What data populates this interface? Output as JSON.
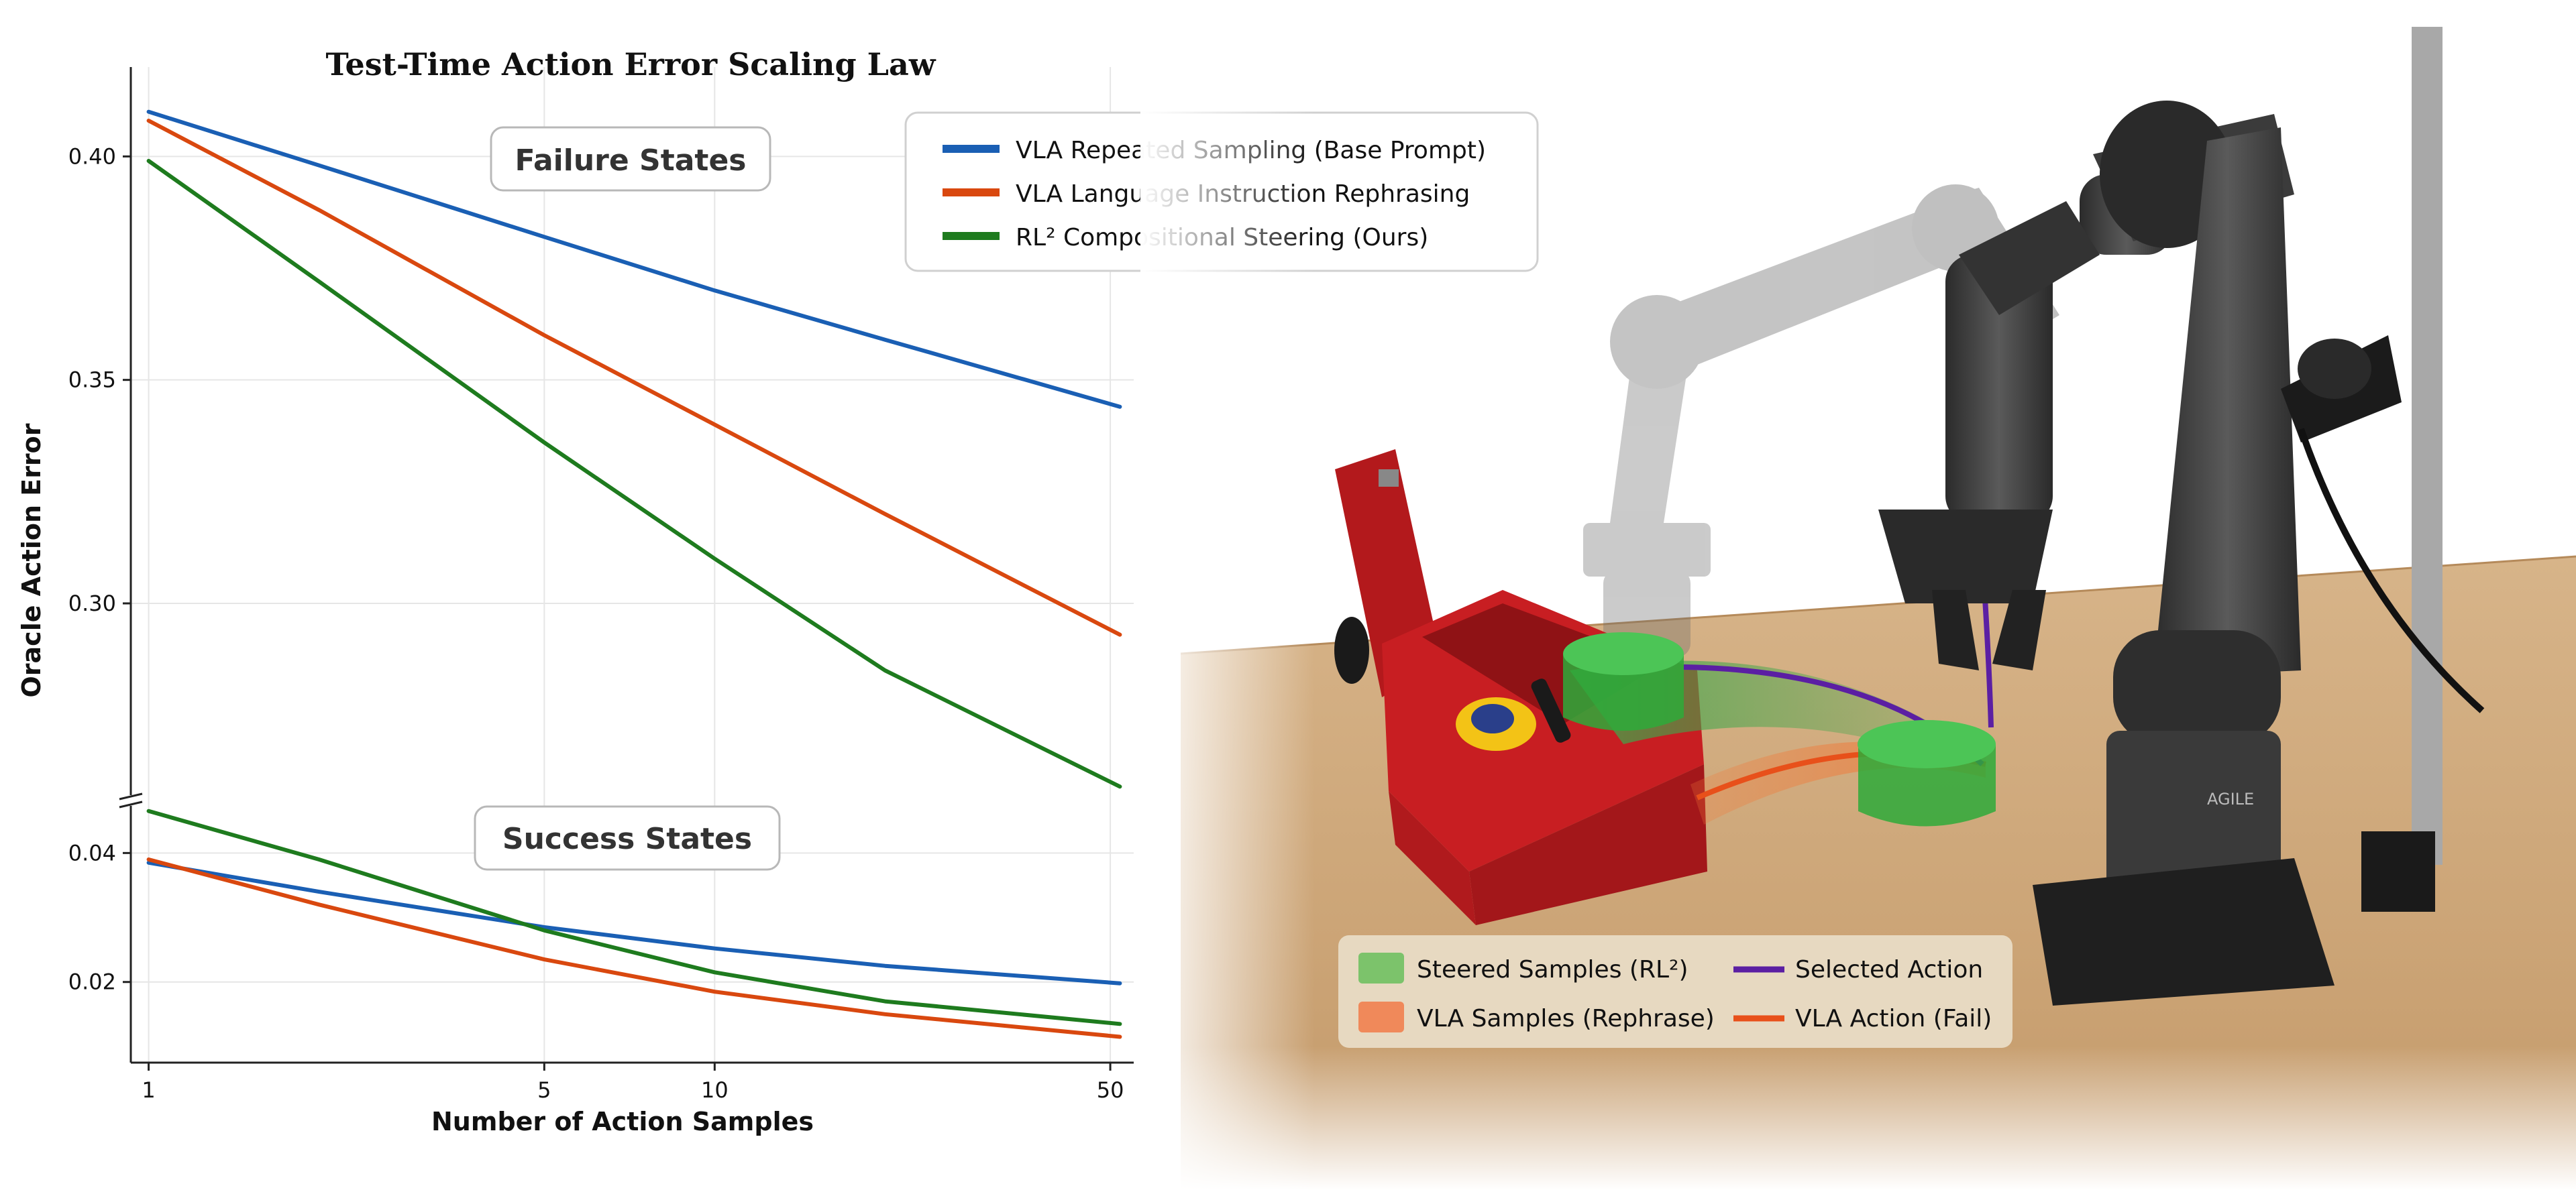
{
  "chart_data": {
    "type": "line",
    "title": "Test-Time Action Error Scaling Law",
    "xlabel": "Number of Action Samples",
    "ylabel": "Oracle Action Error",
    "x_scale": "log",
    "xlim": [
      0.93,
      55
    ],
    "x_ticks": [
      "1",
      "5",
      "10",
      "50"
    ],
    "grid": true,
    "legend_position": "top-right",
    "panels": [
      {
        "label": "Failure States",
        "ylim": [
          0.258,
          0.42
        ],
        "y_ticks": [
          "0.40",
          "0.35",
          "0.30"
        ],
        "series": [
          {
            "name": "VLA Repeated Sampling (Base Prompt)",
            "color": "#1a5fb4",
            "x": [
              1,
              2,
              5,
              10,
              20,
              52
            ],
            "y": [
              0.41,
              0.398,
              0.382,
              0.37,
              0.359,
              0.344
            ]
          },
          {
            "name": "VLA Language Instruction Rephrasing",
            "color": "#d9480f",
            "x": [
              1,
              2,
              5,
              10,
              20,
              52
            ],
            "y": [
              0.408,
              0.388,
              0.36,
              0.34,
              0.32,
              0.293
            ]
          },
          {
            "name": "RL² Compositional Steering (Ours)",
            "color": "#1e7b1e",
            "x": [
              1,
              2,
              5,
              10,
              20,
              52
            ],
            "y": [
              0.399,
              0.372,
              0.336,
              0.31,
              0.285,
              0.259
            ]
          }
        ]
      },
      {
        "label": "Success States",
        "ylim": [
          0.0075,
          0.047
        ],
        "y_ticks": [
          "0.04",
          "0.02"
        ],
        "series": [
          {
            "name": "VLA Repeated Sampling (Base Prompt)",
            "color": "#1a5fb4",
            "x": [
              1,
              2,
              5,
              10,
              20,
              52
            ],
            "y": [
              0.0385,
              0.034,
              0.0285,
              0.0252,
              0.0225,
              0.0198
            ]
          },
          {
            "name": "VLA Language Instruction Rephrasing",
            "color": "#d9480f",
            "x": [
              1,
              2,
              5,
              10,
              20,
              52
            ],
            "y": [
              0.039,
              0.032,
              0.0235,
              0.0185,
              0.015,
              0.0115
            ]
          },
          {
            "name": "RL² Compositional Steering (Ours)",
            "color": "#1e7b1e",
            "x": [
              1,
              2,
              5,
              10,
              20,
              52
            ],
            "y": [
              0.0465,
              0.039,
              0.028,
              0.0215,
              0.017,
              0.0135
            ]
          }
        ]
      }
    ]
  },
  "photo_legend": {
    "steered_samples": "Steered Samples (RL²)",
    "vla_samples": "VLA Samples (Rephrase)",
    "selected_action": "Selected Action",
    "vla_action_fail": "VLA Action (Fail)",
    "robot_brand": "AGILE"
  },
  "colors": {
    "steered": "#7cc36b",
    "vla_samples": "#f0895a",
    "selected": "#5b1fa3",
    "vla_fail": "#e8501a"
  }
}
